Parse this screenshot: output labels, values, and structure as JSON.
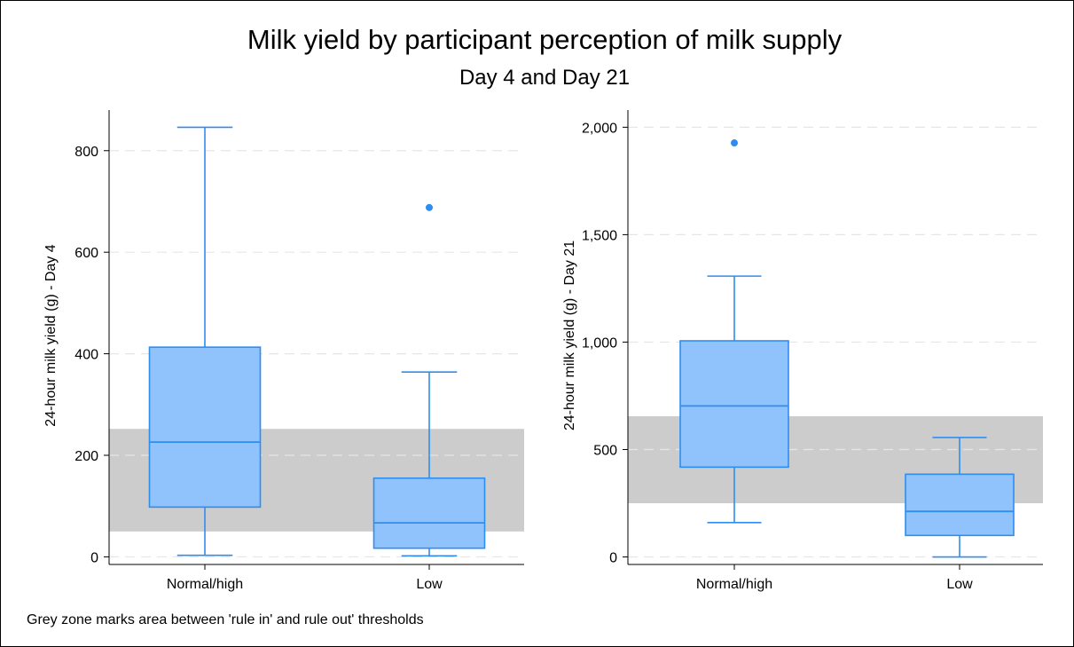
{
  "figure": {
    "title": "Milk yield by participant perception of milk supply",
    "subtitle": "Day 4 and Day 21",
    "note": "Grey zone marks area between 'rule in' and rule out' thresholds",
    "colors": {
      "box_fill": "#90c2fc",
      "box_stroke": "#2e8ef0",
      "grey_zone": "#cccccc",
      "gridline": "#e6e6e6"
    }
  },
  "chart_data": [
    {
      "type": "box",
      "ylabel": "24-hour milk yield (g) - Day 4",
      "ylim": [
        -15,
        880
      ],
      "yticks": [
        0,
        200,
        400,
        600,
        800
      ],
      "ytick_labels": [
        "0",
        "200",
        "400",
        "600",
        "800"
      ],
      "grid": true,
      "grey_zone": [
        50,
        252
      ],
      "categories": [
        "Normal/high",
        "Low"
      ],
      "boxes": [
        {
          "category": "Normal/high",
          "whisker_low": 3,
          "q1": 98,
          "median": 226,
          "q3": 413,
          "whisker_high": 846,
          "outliers": []
        },
        {
          "category": "Low",
          "whisker_low": 2,
          "q1": 17,
          "median": 67,
          "q3": 155,
          "whisker_high": 364,
          "outliers": [
            688
          ]
        }
      ]
    },
    {
      "type": "box",
      "ylabel": "24-hour milk yield (g) - Day 21",
      "ylim": [
        -35,
        2080
      ],
      "yticks": [
        0,
        500,
        1000,
        1500,
        2000
      ],
      "ytick_labels": [
        "0",
        "500",
        "1,000",
        "1,500",
        "2,000"
      ],
      "grid": true,
      "grey_zone": [
        250,
        655
      ],
      "categories": [
        "Normal/high",
        "Low"
      ],
      "boxes": [
        {
          "category": "Normal/high",
          "whisker_low": 160,
          "q1": 418,
          "median": 703,
          "q3": 1006,
          "whisker_high": 1307,
          "outliers": [
            1927
          ]
        },
        {
          "category": "Low",
          "whisker_low": 0,
          "q1": 100,
          "median": 212,
          "q3": 385,
          "whisker_high": 556,
          "outliers": []
        }
      ]
    }
  ]
}
